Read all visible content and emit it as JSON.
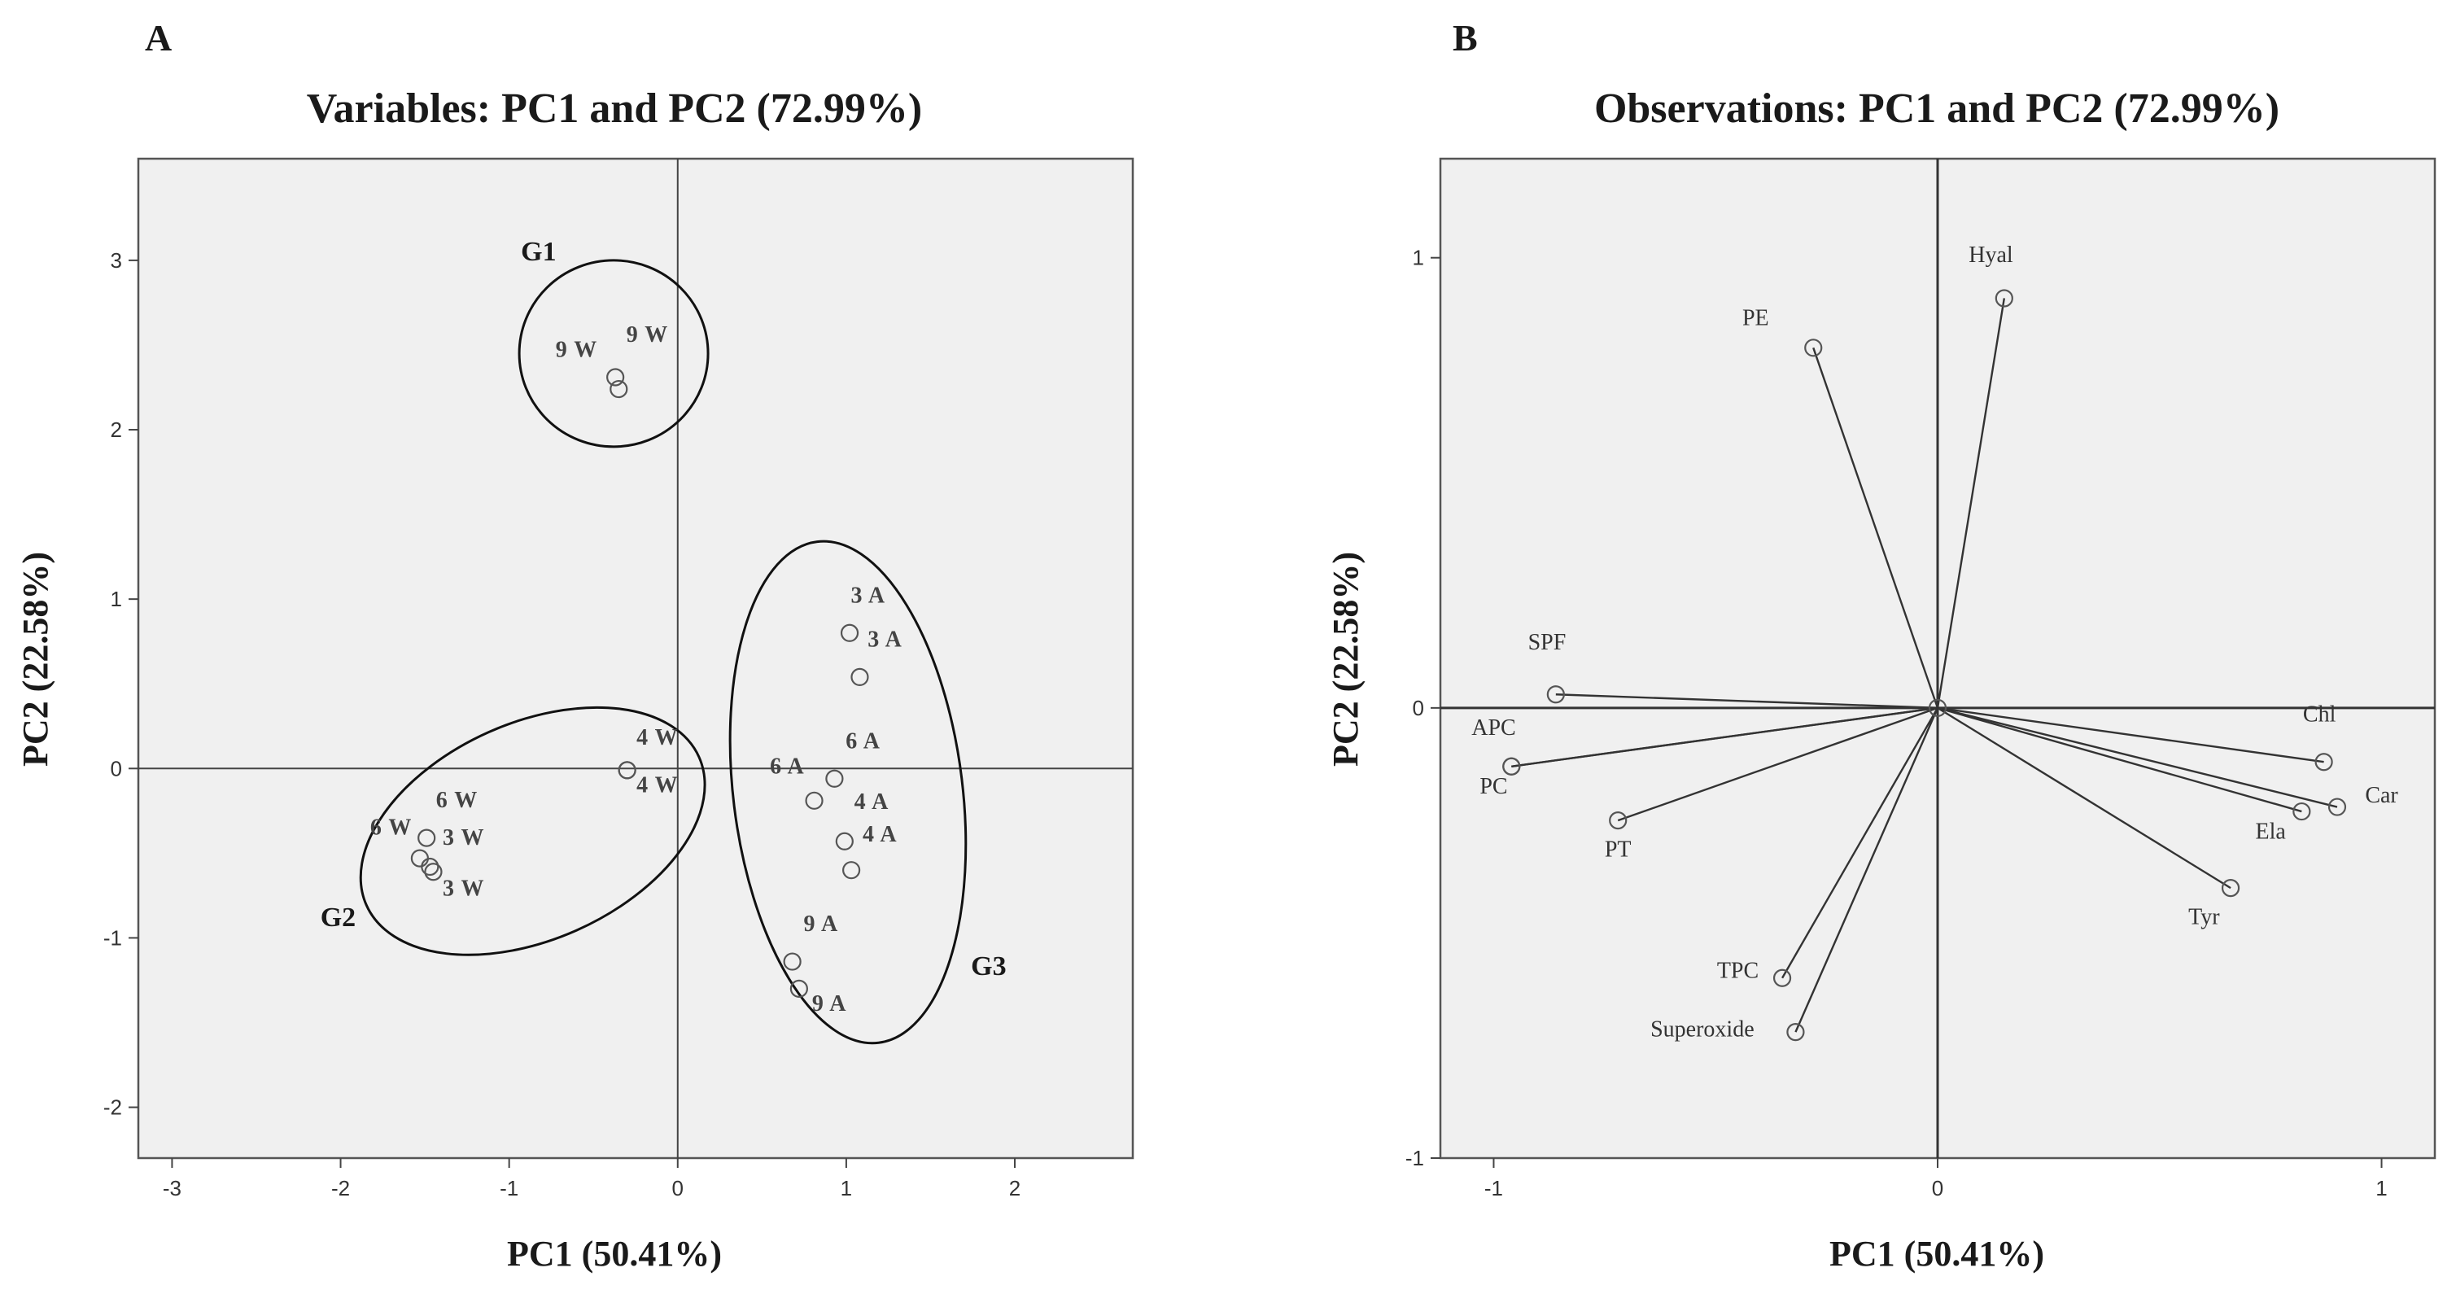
{
  "chart_data": [
    {
      "panel": "A",
      "type": "scatter",
      "title": "Variables: PC1 and PC2 (72.99%)",
      "xlabel": "PC1 (50.41%)",
      "ylabel": "PC2 (22.58%)",
      "xlim": [
        -3.2,
        2.7
      ],
      "ylim": [
        -2.3,
        3.6
      ],
      "xticks": [
        -3,
        -2,
        -1,
        0,
        1,
        2
      ],
      "yticks": [
        -2,
        -1,
        0,
        1,
        2,
        3
      ],
      "xtick_labels": [
        "-3",
        "-2",
        "-1",
        "0",
        "1",
        "2"
      ],
      "ytick_labels": [
        "-2",
        "-1",
        "0",
        "1",
        "2",
        "3"
      ],
      "points": [
        {
          "label": "9 W",
          "x": -0.37,
          "y": 2.31
        },
        {
          "label": "9 W",
          "x": -0.35,
          "y": 2.24
        },
        {
          "label": "4 W",
          "x": -0.3,
          "y": -0.01
        },
        {
          "label": "4 W",
          "x": -0.3,
          "y": -0.01
        },
        {
          "label": "6 W",
          "x": -1.49,
          "y": -0.41
        },
        {
          "label": "6 W",
          "x": -1.53,
          "y": -0.53
        },
        {
          "label": "3 W",
          "x": -1.47,
          "y": -0.58
        },
        {
          "label": "3 W",
          "x": -1.45,
          "y": -0.61
        },
        {
          "label": "3 A",
          "x": 1.02,
          "y": 0.8
        },
        {
          "label": "3 A",
          "x": 1.08,
          "y": 0.54
        },
        {
          "label": "6 A",
          "x": 0.93,
          "y": -0.06
        },
        {
          "label": "6 A",
          "x": 0.81,
          "y": -0.19
        },
        {
          "label": "4 A",
          "x": 0.99,
          "y": -0.43
        },
        {
          "label": "4 A",
          "x": 1.03,
          "y": -0.6
        },
        {
          "label": "9 A",
          "x": 0.68,
          "y": -1.14
        },
        {
          "label": "9 A",
          "x": 0.72,
          "y": -1.3
        }
      ],
      "point_labels": [
        {
          "text": "9 W",
          "x": -0.6,
          "y": 2.43
        },
        {
          "text": "9 W",
          "x": -0.18,
          "y": 2.52
        },
        {
          "text": "4 W",
          "x": -0.12,
          "y": 0.14
        },
        {
          "text": "4 W",
          "x": -0.12,
          "y": -0.14
        },
        {
          "text": "6 W",
          "x": -1.31,
          "y": -0.23
        },
        {
          "text": "6 W",
          "x": -1.7,
          "y": -0.39
        },
        {
          "text": "3 W",
          "x": -1.27,
          "y": -0.45
        },
        {
          "text": "3 W",
          "x": -1.27,
          "y": -0.75
        },
        {
          "text": "3 A",
          "x": 1.13,
          "y": 0.98
        },
        {
          "text": "3 A",
          "x": 1.23,
          "y": 0.72
        },
        {
          "text": "6 A",
          "x": 1.1,
          "y": 0.12
        },
        {
          "text": "6 A",
          "x": 0.65,
          "y": -0.03
        },
        {
          "text": "4 A",
          "x": 1.15,
          "y": -0.24
        },
        {
          "text": "4 A",
          "x": 1.2,
          "y": -0.43
        },
        {
          "text": "9 A",
          "x": 0.85,
          "y": -0.96
        },
        {
          "text": "9 A",
          "x": 0.9,
          "y": -1.43
        }
      ],
      "groups": [
        {
          "name": "G1",
          "members": [
            "9 W",
            "9 W"
          ],
          "cx": -0.38,
          "cy": 2.45,
          "rx": 0.56,
          "ry": 0.55,
          "angle": 0,
          "label_x": -0.93,
          "label_y": 3.0
        },
        {
          "name": "G2",
          "members": [
            "4 W",
            "4 W",
            "6 W",
            "6 W",
            "3 W",
            "3 W"
          ],
          "cx": -0.86,
          "cy": -0.37,
          "rx": 1.08,
          "ry": 0.64,
          "angle": 24,
          "label_x": -2.12,
          "label_y": -0.93
        },
        {
          "name": "G3",
          "members": [
            "3 A",
            "3 A",
            "6 A",
            "6 A",
            "4 A",
            "4 A",
            "9 A",
            "9 A"
          ],
          "cx": 1.01,
          "cy": -0.14,
          "rx": 0.68,
          "ry": 1.49,
          "angle": 7,
          "label_x": 1.74,
          "label_y": -1.22
        }
      ]
    },
    {
      "panel": "B",
      "type": "scatter",
      "title": "Observations: PC1 and PC2 (72.99%)",
      "xlabel": "PC1 (50.41%)",
      "ylabel": "PC2 (22.58%)",
      "xlim": [
        -1.12,
        1.12
      ],
      "ylim": [
        -1.0,
        1.22
      ],
      "xticks": [
        -1,
        0,
        1
      ],
      "yticks": [
        -1,
        0,
        1
      ],
      "xtick_labels": [
        "-1",
        "0",
        "1"
      ],
      "ytick_labels": [
        "-1",
        "0",
        "1"
      ],
      "vectors": [
        {
          "label": "Hyal",
          "x": 0.15,
          "y": 0.91,
          "label_x": 0.12,
          "label_y": 0.99
        },
        {
          "label": "PE",
          "x": -0.28,
          "y": 0.8,
          "label_x": -0.41,
          "label_y": 0.85
        },
        {
          "label": "SPF",
          "x": -0.86,
          "y": 0.03,
          "label_x": -0.88,
          "label_y": 0.13
        },
        {
          "label": "APC",
          "x": -0.96,
          "y": -0.13,
          "label_x": -1.0,
          "label_y": -0.06
        },
        {
          "label": "PC",
          "x": -0.96,
          "y": -0.13,
          "label_x": -1.0,
          "label_y": -0.19
        },
        {
          "label": "PT",
          "x": -0.72,
          "y": -0.25,
          "label_x": -0.72,
          "label_y": -0.33
        },
        {
          "label": "TPC",
          "x": -0.35,
          "y": -0.6,
          "label_x": -0.45,
          "label_y": -0.6
        },
        {
          "label": "Superoxide",
          "x": -0.32,
          "y": -0.72,
          "label_x": -0.53,
          "label_y": -0.73
        },
        {
          "label": "Chl",
          "x": 0.87,
          "y": -0.12,
          "label_x": 0.86,
          "label_y": -0.03
        },
        {
          "label": "Car",
          "x": 0.9,
          "y": -0.22,
          "label_x": 1.0,
          "label_y": -0.21
        },
        {
          "label": "Ela",
          "x": 0.82,
          "y": -0.23,
          "label_x": 0.75,
          "label_y": -0.29
        },
        {
          "label": "Tyr",
          "x": 0.66,
          "y": -0.4,
          "label_x": 0.6,
          "label_y": -0.48
        }
      ]
    }
  ]
}
